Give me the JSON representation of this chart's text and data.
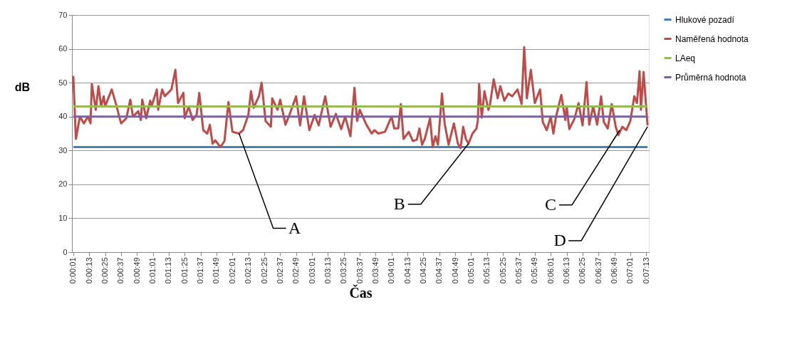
{
  "chart_data": {
    "type": "line",
    "xlabel": "Čas",
    "ylabel": "dB",
    "xlim": [
      0,
      435
    ],
    "ylim": [
      0,
      70
    ],
    "yticks": [
      0,
      10,
      20,
      30,
      40,
      50,
      60,
      70
    ],
    "xticks": [
      {
        "value": 1,
        "label": "0:00:01"
      },
      {
        "value": 13,
        "label": "0:00:13"
      },
      {
        "value": 25,
        "label": "0:00:25"
      },
      {
        "value": 37,
        "label": "0:00:37"
      },
      {
        "value": 49,
        "label": "0:00:49"
      },
      {
        "value": 61,
        "label": "0:01:01"
      },
      {
        "value": 73,
        "label": "0:01:13"
      },
      {
        "value": 85,
        "label": "0:01:25"
      },
      {
        "value": 97,
        "label": "0:01:37"
      },
      {
        "value": 109,
        "label": "0:01:49"
      },
      {
        "value": 121,
        "label": "0:02:01"
      },
      {
        "value": 133,
        "label": "0:02:13"
      },
      {
        "value": 145,
        "label": "0:02:25"
      },
      {
        "value": 157,
        "label": "0:02:37"
      },
      {
        "value": 169,
        "label": "0:02:49"
      },
      {
        "value": 181,
        "label": "0:03:01"
      },
      {
        "value": 193,
        "label": "0:03:13"
      },
      {
        "value": 205,
        "label": "0:03:25"
      },
      {
        "value": 217,
        "label": "0:03:37"
      },
      {
        "value": 229,
        "label": "0:03:49"
      },
      {
        "value": 241,
        "label": "0:04:01"
      },
      {
        "value": 253,
        "label": "0:04:13"
      },
      {
        "value": 265,
        "label": "0:04:25"
      },
      {
        "value": 277,
        "label": "0:04:37"
      },
      {
        "value": 289,
        "label": "0:04:49"
      },
      {
        "value": 301,
        "label": "0:05:01"
      },
      {
        "value": 313,
        "label": "0:05:13"
      },
      {
        "value": 325,
        "label": "0:05:25"
      },
      {
        "value": 337,
        "label": "0:05:37"
      },
      {
        "value": 349,
        "label": "0:05:49"
      },
      {
        "value": 361,
        "label": "0:06:01"
      },
      {
        "value": 373,
        "label": "0:06:13"
      },
      {
        "value": 385,
        "label": "0:06:25"
      },
      {
        "value": 397,
        "label": "0:06:37"
      },
      {
        "value": 409,
        "label": "0:06:49"
      },
      {
        "value": 421,
        "label": "0:07:01"
      },
      {
        "value": 433,
        "label": "0:07:13"
      }
    ],
    "grid": "y",
    "legend": "right",
    "series": [
      {
        "name": "Hlukové pozadí",
        "color": "#4a7ebb",
        "x": [
          1,
          434
        ],
        "values": [
          31,
          31
        ]
      },
      {
        "name": "Naměřená hodnota",
        "color": "#be4b48",
        "x": [
          1,
          3,
          6,
          9,
          12,
          14,
          15,
          18,
          20,
          22,
          24,
          25,
          30,
          33,
          37,
          41,
          44,
          46,
          50,
          52,
          53,
          56,
          59,
          60,
          64,
          65,
          68,
          70,
          75,
          78,
          80,
          84,
          85,
          88,
          91,
          94,
          96,
          99,
          102,
          104,
          106,
          108,
          112,
          115,
          118,
          121,
          126,
          129,
          133,
          135,
          137,
          141,
          143,
          146,
          150,
          151,
          155,
          157,
          161,
          164,
          169,
          172,
          175,
          179,
          183,
          186,
          191,
          195,
          199,
          203,
          206,
          210,
          213,
          215,
          217,
          222,
          226,
          228,
          231,
          236,
          241,
          243,
          246,
          248,
          250,
          254,
          257,
          260,
          262,
          264,
          266,
          270,
          272,
          274,
          276,
          279,
          281,
          284,
          288,
          291,
          293,
          295,
          297,
          299,
          302,
          305,
          306,
          307,
          309,
          311,
          314,
          315,
          318,
          321,
          323,
          326,
          329,
          332,
          336,
          339,
          341,
          343,
          346,
          349,
          353,
          355,
          358,
          361,
          363,
          365,
          369,
          372,
          373,
          375,
          379,
          382,
          385,
          388,
          390,
          393,
          396,
          399,
          401,
          404,
          407,
          410,
          412,
          415,
          418,
          421,
          424,
          426,
          428,
          429,
          431,
          433,
          434
        ],
        "values": [
          52,
          33.4,
          40,
          38,
          40,
          38,
          49.6,
          42,
          49,
          43,
          46,
          43,
          48,
          44,
          38,
          39.5,
          45,
          40,
          41.6,
          39,
          45,
          39.5,
          44.7,
          43,
          48,
          42,
          48,
          46,
          48,
          53.8,
          44,
          47,
          39.5,
          43,
          39,
          40.5,
          47,
          36,
          35,
          37.6,
          32,
          33,
          31,
          32.8,
          44.3,
          35.5,
          35,
          36,
          40.5,
          47.5,
          42.6,
          46,
          50,
          38.7,
          37,
          45.4,
          42,
          45,
          37.6,
          40.5,
          46,
          37.4,
          46,
          36,
          40.5,
          37.4,
          46,
          37,
          40.8,
          36.3,
          40,
          34.2,
          48.5,
          38.7,
          42,
          37.6,
          35,
          36,
          35,
          35.5,
          40,
          36.5,
          36.5,
          43.7,
          33.4,
          35.5,
          32.8,
          33.2,
          36.5,
          31.7,
          33.4,
          39.5,
          31,
          34.2,
          31.7,
          46.8,
          38,
          31.7,
          38,
          32,
          30.7,
          37,
          33.4,
          32,
          35,
          36.5,
          38.7,
          49.6,
          39.7,
          47.5,
          42,
          43,
          51,
          45.4,
          49,
          44.7,
          46.8,
          46,
          48,
          43.7,
          60.5,
          45.4,
          53.8,
          44,
          48,
          38.4,
          36,
          40,
          35,
          40,
          46.4,
          39,
          43,
          36.3,
          39.5,
          44,
          37.4,
          50.2,
          37.6,
          43,
          37.6,
          46,
          38.4,
          36.5,
          43.7,
          37,
          34.5,
          37,
          36,
          38.7,
          46,
          44,
          53.4,
          42,
          53.2,
          42.6,
          37.4
        ]
      },
      {
        "name": "LAeq",
        "color": "#98b954",
        "x": [
          1,
          434
        ],
        "values": [
          43,
          43
        ]
      },
      {
        "name": "Průměrná hodnota",
        "color": "#7d60a0",
        "x": [
          1,
          434
        ],
        "values": [
          40,
          40
        ]
      }
    ],
    "annotations": [
      {
        "text": "A",
        "x": 126,
        "y": 35
      },
      {
        "text": "B",
        "x": 299,
        "y": 32
      },
      {
        "text": "C",
        "x": 413,
        "y": 36
      },
      {
        "text": "D",
        "x": 434,
        "y": 37
      }
    ]
  }
}
